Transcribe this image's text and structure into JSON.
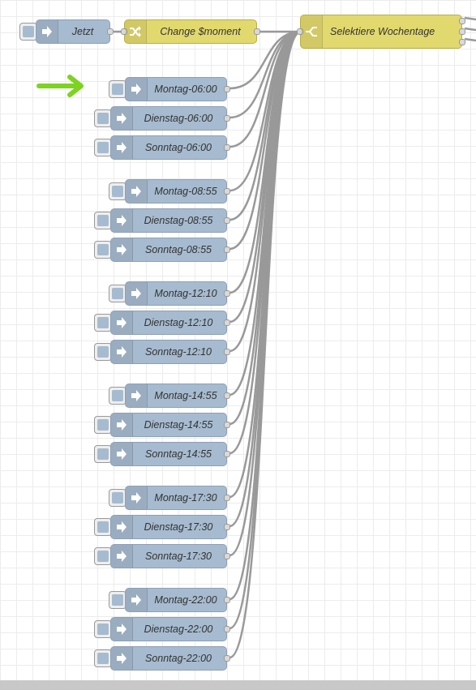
{
  "flow": {
    "inject_jetzt": {
      "label": "Jetzt",
      "icon": "arrow-in-icon"
    },
    "change_moment": {
      "label": "Change $moment",
      "icon": "shuffle-icon"
    },
    "switch_weekdays": {
      "label": "Selektiere Wochentage",
      "icon": "switch-icon",
      "outputs": 3
    },
    "inject_nodes": [
      {
        "label": "Montag-06:00"
      },
      {
        "label": "Dienstag-06:00"
      },
      {
        "label": "Sonntag-06:00"
      },
      {
        "label": "Montag-08:55"
      },
      {
        "label": "Dienstag-08:55"
      },
      {
        "label": "Sonntag-08:55"
      },
      {
        "label": "Montag-12:10"
      },
      {
        "label": "Dienstag-12:10"
      },
      {
        "label": "Sonntag-12:10"
      },
      {
        "label": "Montag-14:55"
      },
      {
        "label": "Dienstag-14:55"
      },
      {
        "label": "Sonntag-14:55"
      },
      {
        "label": "Montag-17:30"
      },
      {
        "label": "Dienstag-17:30"
      },
      {
        "label": "Sonntag-17:30"
      },
      {
        "label": "Montag-22:00"
      },
      {
        "label": "Dienstag-22:00"
      },
      {
        "label": "Sonntag-22:00"
      }
    ]
  },
  "annotation": {
    "arrow": "green-arrow-icon",
    "color": "#7ed321"
  },
  "colors": {
    "inject_node": "#a6bbcf",
    "function_node": "#e2d96e",
    "wire": "#999999"
  }
}
